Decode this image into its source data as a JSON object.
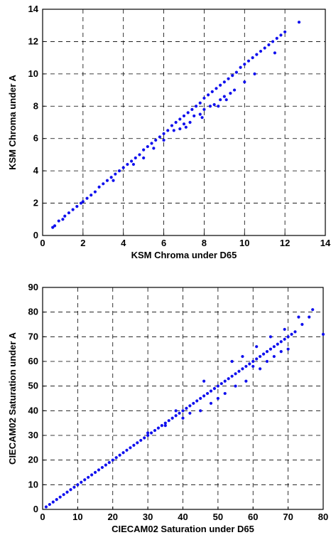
{
  "chart_data": [
    {
      "type": "scatter",
      "xlabel": "KSM Chroma under D65",
      "ylabel": "KSM Chroma under A",
      "xlim": [
        0,
        14
      ],
      "ylim": [
        0,
        14
      ],
      "xticks": [
        "0",
        "2",
        "4",
        "6",
        "8",
        "10",
        "12",
        "14"
      ],
      "yticks": [
        "0",
        "2",
        "4",
        "6",
        "8",
        "10",
        "12",
        "14"
      ],
      "grid": true,
      "marker_color": "#1010ee",
      "series": [
        {
          "x": [
            0.5,
            0.6,
            0.8,
            1.0,
            1.1,
            1.3,
            1.5,
            1.7,
            1.9,
            2.0,
            2.2,
            2.4,
            2.6,
            2.8,
            3.0,
            3.2,
            3.4,
            3.6,
            3.8,
            4.0,
            4.2,
            4.4,
            4.6,
            4.8,
            5.0,
            5.2,
            5.4,
            5.6,
            5.8,
            6.0,
            6.2,
            6.4,
            6.6,
            6.8,
            7.0,
            7.2,
            7.4,
            7.6,
            7.8,
            8.0,
            8.2,
            8.4,
            8.6,
            8.8,
            9.0,
            9.2,
            9.4,
            9.6,
            9.8,
            10.0,
            10.2,
            10.4,
            10.6,
            10.8,
            11.0,
            11.2,
            11.4,
            11.6,
            11.8,
            12.0,
            12.7,
            6.5,
            7.0,
            7.5,
            8.0,
            8.5,
            9.0,
            9.5,
            10.0,
            6.8,
            7.3,
            7.8,
            8.3,
            8.8,
            9.3,
            5.5,
            6.0,
            4.5,
            5.0,
            3.5,
            7.1,
            7.9,
            8.7,
            9.1,
            10.5,
            11.5
          ],
          "y": [
            0.5,
            0.6,
            0.9,
            1.0,
            1.2,
            1.4,
            1.6,
            1.8,
            2.0,
            2.1,
            2.3,
            2.5,
            2.7,
            3.0,
            3.2,
            3.4,
            3.6,
            3.8,
            4.0,
            4.2,
            4.4,
            4.6,
            4.8,
            5.0,
            5.3,
            5.5,
            5.7,
            5.9,
            6.1,
            6.3,
            6.5,
            6.8,
            7.0,
            7.2,
            7.4,
            7.6,
            7.8,
            8.0,
            8.2,
            8.5,
            8.7,
            8.9,
            9.1,
            9.3,
            9.5,
            9.7,
            9.9,
            10.1,
            10.4,
            10.6,
            10.8,
            11.0,
            11.2,
            11.4,
            11.6,
            11.8,
            12.0,
            12.2,
            12.4,
            12.6,
            13.2,
            6.5,
            6.9,
            7.4,
            7.8,
            8.1,
            8.6,
            9.0,
            9.5,
            6.6,
            7.0,
            7.5,
            8.0,
            8.4,
            8.8,
            5.4,
            5.9,
            4.4,
            4.8,
            3.4,
            6.7,
            7.3,
            8.0,
            8.4,
            10.0,
            11.3
          ]
        }
      ]
    },
    {
      "type": "scatter",
      "xlabel": "CIECAM02 Saturation under D65",
      "ylabel": "CIECAM02 Saturation under A",
      "xlim": [
        0,
        80
      ],
      "ylim": [
        0,
        90
      ],
      "xticks": [
        "0",
        "10",
        "20",
        "30",
        "40",
        "50",
        "60",
        "70",
        "80"
      ],
      "yticks": [
        "0",
        "10",
        "20",
        "30",
        "40",
        "50",
        "60",
        "70",
        "80",
        "90"
      ],
      "grid": true,
      "marker_color": "#1010ee",
      "series": [
        {
          "x": [
            1,
            2,
            3,
            4,
            5,
            6,
            7,
            8,
            9,
            10,
            11,
            12,
            13,
            14,
            15,
            16,
            17,
            18,
            19,
            20,
            21,
            22,
            23,
            24,
            25,
            26,
            27,
            28,
            29,
            30,
            31,
            32,
            33,
            34,
            35,
            36,
            37,
            38,
            39,
            40,
            41,
            42,
            43,
            44,
            45,
            46,
            47,
            48,
            49,
            50,
            51,
            52,
            53,
            54,
            55,
            56,
            57,
            58,
            59,
            60,
            61,
            62,
            63,
            64,
            65,
            66,
            67,
            68,
            69,
            70,
            71,
            72,
            74,
            76,
            77,
            80,
            45,
            48,
            50,
            52,
            55,
            58,
            60,
            62,
            64,
            66,
            68,
            70,
            40,
            42,
            35,
            30,
            38,
            46,
            54,
            57,
            61,
            65,
            69,
            73
          ],
          "y": [
            1,
            2,
            3,
            4,
            5,
            6,
            7,
            8,
            9,
            10,
            11,
            12,
            13,
            14,
            15,
            16,
            17,
            18,
            19,
            20,
            21,
            22,
            23,
            24,
            25,
            26,
            27,
            28,
            29,
            30,
            31,
            32,
            33,
            34,
            35,
            36,
            37,
            38,
            39,
            40,
            41,
            42,
            43,
            44,
            45,
            46,
            47,
            48,
            49,
            50,
            51,
            52,
            53,
            54,
            55,
            56,
            57,
            58,
            59,
            60,
            61,
            62,
            63,
            64,
            65,
            66,
            67,
            68,
            69,
            70,
            71,
            72,
            75,
            78,
            81,
            71,
            40,
            43,
            45,
            47,
            50,
            52,
            58,
            57,
            60,
            62,
            64,
            65,
            37,
            39,
            34,
            31,
            40,
            52,
            60,
            62,
            66,
            70,
            73,
            78
          ]
        }
      ]
    }
  ]
}
